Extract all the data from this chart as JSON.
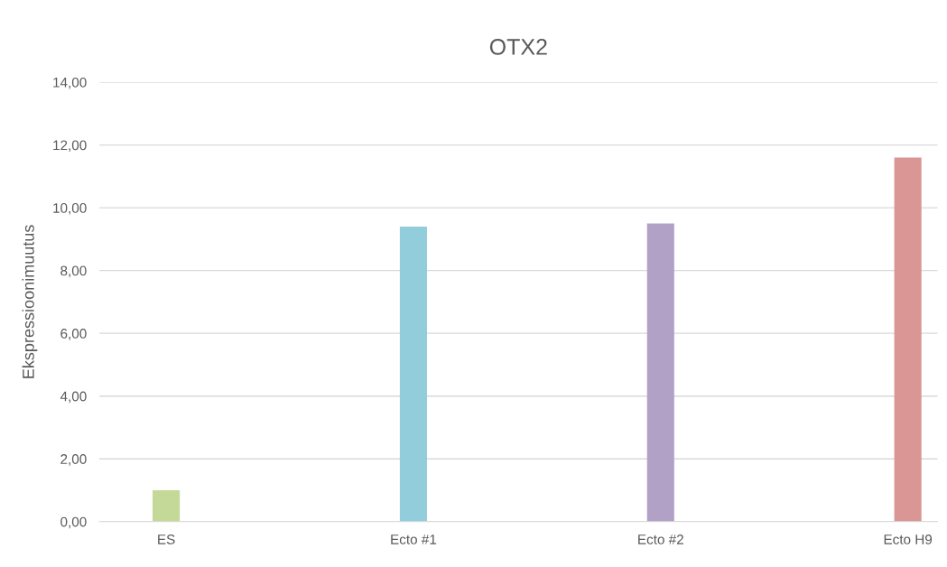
{
  "chart_data": {
    "type": "bar",
    "title": "OTX2",
    "ylabel": "Ekspressioonimuutus",
    "categories": [
      "ES",
      "Ecto #1",
      "Ecto #2",
      "Ecto H9"
    ],
    "values": [
      1.0,
      9.4,
      9.5,
      11.6
    ],
    "colors": [
      "#c4d897",
      "#92cddc",
      "#b2a1c7",
      "#d99694"
    ],
    "ylim": [
      0,
      14
    ],
    "yticks": [
      {
        "value": 0,
        "label": "0,00"
      },
      {
        "value": 2,
        "label": "2,00"
      },
      {
        "value": 4,
        "label": "4,00"
      },
      {
        "value": 6,
        "label": "6,00"
      },
      {
        "value": 8,
        "label": "8,00"
      },
      {
        "value": 10,
        "label": "10,00"
      },
      {
        "value": 12,
        "label": "12,00"
      },
      {
        "value": 14,
        "label": "14,00"
      }
    ],
    "grid": "y",
    "legend": false
  }
}
